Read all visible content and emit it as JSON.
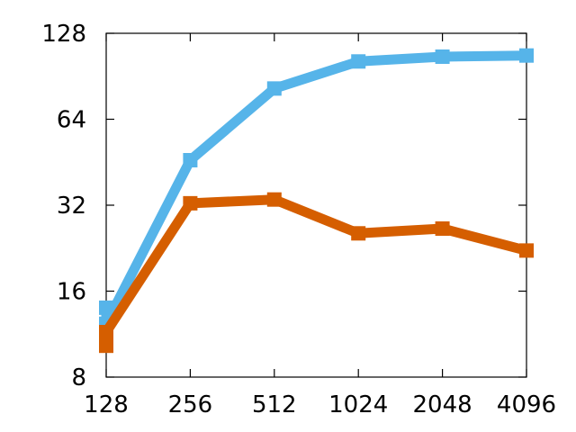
{
  "chart_data": {
    "type": "line",
    "title": "",
    "xlabel": "",
    "ylabel": "",
    "x_scale": "log2",
    "y_scale": "log2",
    "xlim": [
      128,
      4096
    ],
    "ylim": [
      8,
      128
    ],
    "x_ticks": [
      128,
      256,
      512,
      1024,
      2048,
      4096
    ],
    "x_tick_labels": [
      "128",
      "256",
      "512",
      "1024",
      "2048",
      "4096"
    ],
    "y_ticks": [
      8,
      16,
      32,
      64,
      128
    ],
    "y_tick_labels": [
      "8",
      "16",
      "32",
      "64",
      "128"
    ],
    "grid": false,
    "legend": "none",
    "series": [
      {
        "color": "#56b4e9",
        "points": [
          {
            "x": 128,
            "y": 14
          },
          {
            "x": 128,
            "y": 12.3
          },
          {
            "x": 256,
            "y": 46
          },
          {
            "x": 512,
            "y": 82
          },
          {
            "x": 1024,
            "y": 102
          },
          {
            "x": 2048,
            "y": 106
          },
          {
            "x": 4096,
            "y": 107
          }
        ]
      },
      {
        "color": "#d55e00",
        "points": [
          {
            "x": 128,
            "y": 10.3
          },
          {
            "x": 128,
            "y": 11.5
          },
          {
            "x": 256,
            "y": 32.5
          },
          {
            "x": 512,
            "y": 33.5
          },
          {
            "x": 1024,
            "y": 25.5
          },
          {
            "x": 2048,
            "y": 26.5
          },
          {
            "x": 4096,
            "y": 22.2
          }
        ]
      }
    ]
  }
}
